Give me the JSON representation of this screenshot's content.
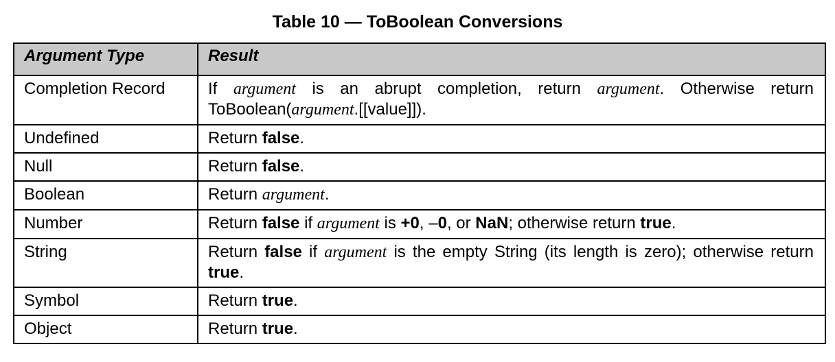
{
  "caption": "Table 10 — ToBoolean Conversions",
  "table": {
    "headers": [
      "Argument Type",
      "Result"
    ],
    "rows": [
      {
        "type": "Completion Record",
        "result": [
          {
            "t": "If "
          },
          {
            "t": "argument",
            "s": "i"
          },
          {
            "t": " is an abrupt completion, return "
          },
          {
            "t": "argument",
            "s": "i"
          },
          {
            "t": ". Otherwise return ToBoolean("
          },
          {
            "t": "argument",
            "s": "i"
          },
          {
            "t": ".[[value]])."
          }
        ]
      },
      {
        "type": "Undefined",
        "result": [
          {
            "t": "Return "
          },
          {
            "t": "false",
            "s": "b"
          },
          {
            "t": "."
          }
        ]
      },
      {
        "type": "Null",
        "result": [
          {
            "t": "Return "
          },
          {
            "t": "false",
            "s": "b"
          },
          {
            "t": "."
          }
        ]
      },
      {
        "type": "Boolean",
        "result": [
          {
            "t": "Return "
          },
          {
            "t": "argument",
            "s": "i"
          },
          {
            "t": "."
          }
        ]
      },
      {
        "type": "Number",
        "result": [
          {
            "t": "Return "
          },
          {
            "t": "false",
            "s": "b"
          },
          {
            "t": " if "
          },
          {
            "t": "argument",
            "s": "i"
          },
          {
            "t": " is "
          },
          {
            "t": "+0",
            "s": "b"
          },
          {
            "t": ", –"
          },
          {
            "t": "0",
            "s": "b"
          },
          {
            "t": ", or "
          },
          {
            "t": "NaN",
            "s": "b"
          },
          {
            "t": "; otherwise return "
          },
          {
            "t": "true",
            "s": "b"
          },
          {
            "t": "."
          }
        ]
      },
      {
        "type": "String",
        "result": [
          {
            "t": "Return "
          },
          {
            "t": "false",
            "s": "b"
          },
          {
            "t": " if "
          },
          {
            "t": "argument",
            "s": "i"
          },
          {
            "t": " is the empty String (its length is zero); otherwise return "
          },
          {
            "t": "true",
            "s": "b"
          },
          {
            "t": "."
          }
        ]
      },
      {
        "type": "Symbol",
        "result": [
          {
            "t": "Return "
          },
          {
            "t": "true",
            "s": "b"
          },
          {
            "t": "."
          }
        ]
      },
      {
        "type": "Object",
        "result": [
          {
            "t": "Return "
          },
          {
            "t": "true",
            "s": "b"
          },
          {
            "t": "."
          }
        ]
      }
    ]
  },
  "colors": {
    "header_background": "#c8c8c8",
    "border": "#000000"
  }
}
